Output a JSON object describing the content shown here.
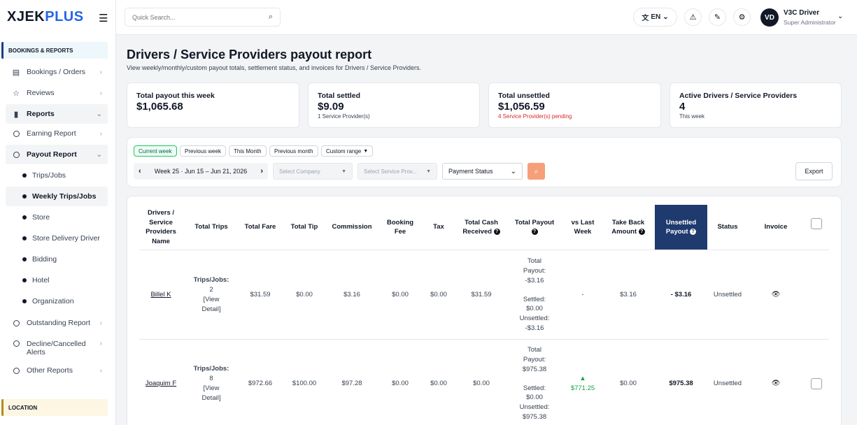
{
  "brand": {
    "part1": "XJEK",
    "part2": "PLUS"
  },
  "sidebar": {
    "section_bookings": "BOOKINGS & REPORTS",
    "section_location": "LOCATION",
    "items": [
      {
        "label": "Bookings / Orders"
      },
      {
        "label": "Reviews"
      },
      {
        "label": "Reports"
      },
      {
        "label": "Earning Report"
      },
      {
        "label": "Payout Report"
      },
      {
        "label": "Trips/Jobs"
      },
      {
        "label": "Weekly Trips/Jobs"
      },
      {
        "label": "Store"
      },
      {
        "label": "Store Delivery Driver"
      },
      {
        "label": "Bidding"
      },
      {
        "label": "Hotel"
      },
      {
        "label": "Organization"
      },
      {
        "label": "Outstanding Report"
      },
      {
        "label": "Decline/Cancelled Alerts"
      },
      {
        "label": "Other Reports"
      }
    ]
  },
  "topbar": {
    "search_placeholder": "Quick Search...",
    "language": "EN",
    "avatar_initials": "VD",
    "user_name": "V3C Driver",
    "user_role": "Super Administrator"
  },
  "page": {
    "title": "Drivers / Service Providers payout report",
    "subtitle": "View weekly/monthly/custom payout totals, settlement status, and invoices for Drivers / Service Providers."
  },
  "cards": [
    {
      "label": "Total payout this week",
      "value": "$1,065.68",
      "note": ""
    },
    {
      "label": "Total settled",
      "value": "$9.09",
      "note": "1 Service Provider(s)"
    },
    {
      "label": "Total unsettled",
      "value": "$1,056.59",
      "note": "4 Service Provider(s) pending"
    },
    {
      "label": "Active Drivers / Service Providers",
      "value": "4",
      "note": "This week"
    }
  ],
  "filters": {
    "ranges": [
      "Current week",
      "Previous week",
      "This Month",
      "Previous month",
      "Custom range"
    ],
    "week_label": "Week 25 · Jun 15 – Jun 21, 2026",
    "company_placeholder": "Select Company",
    "provider_placeholder": "Select Service Prov...",
    "payment_status": "Payment Status",
    "export_label": "Export"
  },
  "table": {
    "headers": {
      "name": "Drivers / Service Providers Name",
      "trips": "Total Trips",
      "fare": "Total Fare",
      "tip": "Total Tip",
      "commission": "Commission",
      "booking_fee": "Booking Fee",
      "tax": "Tax",
      "cash": "Total Cash Received",
      "payout": "Total Payout",
      "vs_last": "vs Last Week",
      "take_back": "Take Back Amount",
      "unsettled": "Unsettled Payout",
      "status": "Status",
      "invoice": "Invoice"
    },
    "rows": [
      {
        "name": "Billel K",
        "trips_label": "Trips/Jobs:",
        "trips": "2",
        "view_detail": "[View Detail]",
        "fare": "$31.59",
        "tip": "$0.00",
        "commission": "$3.16",
        "booking_fee": "$0.00",
        "tax": "$0.00",
        "cash": "$31.59",
        "payout_total": "Total Payout: -$3.16",
        "payout_settled": "Settled: $0.00",
        "payout_unsettled": "Unsettled: -$3.16",
        "vs_last": "-",
        "take_back": "$3.16",
        "unsettled": "- $3.16",
        "status": "Unsettled"
      },
      {
        "name": "Joaquim F",
        "trips_label": "Trips/Jobs:",
        "trips": "8",
        "view_detail": "[View Detail]",
        "fare": "$972.66",
        "tip": "$100.00",
        "commission": "$97.28",
        "booking_fee": "$0.00",
        "tax": "$0.00",
        "cash": "$0.00",
        "payout_total": "Total Payout: $975.38",
        "payout_settled": "Settled: $0.00",
        "payout_unsettled": "Unsettled: $975.38",
        "vs_last": "$771.25",
        "take_back": "$0.00",
        "unsettled": "$975.38",
        "status": "Unsettled"
      }
    ]
  }
}
